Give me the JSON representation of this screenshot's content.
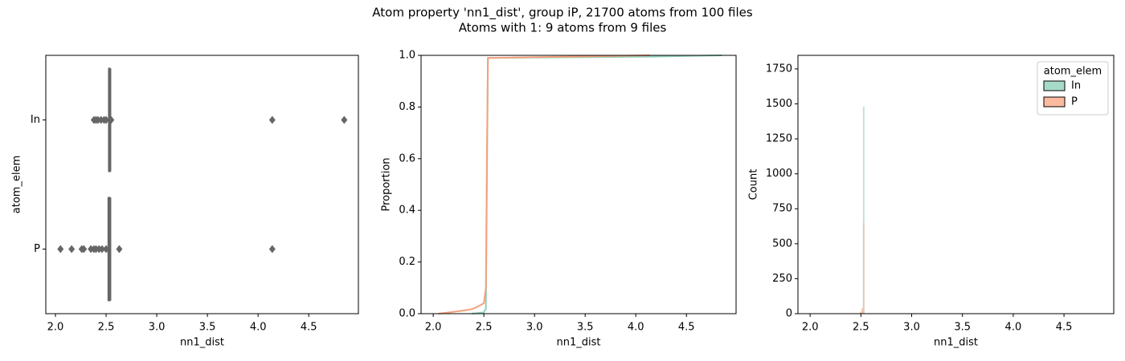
{
  "title": "Atom property 'nn1_dist', group iP, 21700 atoms from 100 files",
  "subtitle": "Atoms with 1: 9 atoms from 9 files",
  "chart_data": [
    {
      "type": "box",
      "x_label": "nn1_dist",
      "y_label": "atom_elem",
      "color": "#666666",
      "categories": [
        "In",
        "P"
      ],
      "boxes": [
        {
          "min": 2.525,
          "q1": 2.528,
          "median": 2.53,
          "q3": 2.535,
          "max": 2.545,
          "outliers": [
            2.38,
            2.4,
            2.42,
            2.45,
            2.48,
            2.5,
            2.55,
            4.14,
            4.85
          ]
        },
        {
          "min": 2.52,
          "q1": 2.525,
          "median": 2.53,
          "q3": 2.535,
          "max": 2.545,
          "outliers": [
            2.05,
            2.16,
            2.26,
            2.28,
            2.35,
            2.38,
            2.4,
            2.43,
            2.46,
            2.5,
            2.63,
            4.14
          ]
        }
      ],
      "xlim": [
        1.905,
        4.99
      ],
      "xticks": [
        {
          "value": 2,
          "label": "2.0"
        },
        {
          "value": 2.5,
          "label": "2.5"
        },
        {
          "value": 3,
          "label": "3.0"
        },
        {
          "value": 3.5,
          "label": "3.5"
        },
        {
          "value": 4,
          "label": "4.0"
        },
        {
          "value": 4.5,
          "label": "4.5"
        }
      ]
    },
    {
      "type": "line",
      "x_label": "nn1_dist",
      "y_label": "Proportion",
      "series": [
        {
          "name": "In",
          "color": "#8fd1bb",
          "x": [
            2.38,
            2.5,
            2.52,
            2.53,
            2.54,
            4.14,
            4.85
          ],
          "values": [
            0,
            0.005,
            0.02,
            0.5,
            0.99,
            0.995,
            1.0
          ]
        },
        {
          "name": "P",
          "color": "#f7a07c",
          "x": [
            2.05,
            2.16,
            2.26,
            2.35,
            2.4,
            2.45,
            2.5,
            2.52,
            2.53,
            2.54,
            4.14
          ],
          "values": [
            0,
            0.005,
            0.01,
            0.015,
            0.02,
            0.03,
            0.04,
            0.1,
            0.6,
            0.99,
            1.0
          ]
        }
      ],
      "xlim": [
        1.88,
        4.99
      ],
      "ylim": [
        0,
        1
      ],
      "xticks": [
        {
          "value": 2,
          "label": "2.0"
        },
        {
          "value": 2.5,
          "label": "2.5"
        },
        {
          "value": 3,
          "label": "3.0"
        },
        {
          "value": 3.5,
          "label": "3.5"
        },
        {
          "value": 4,
          "label": "4.0"
        },
        {
          "value": 4.5,
          "label": "4.5"
        }
      ],
      "yticks": [
        {
          "value": 0,
          "label": "0.0"
        },
        {
          "value": 0.2,
          "label": "0.2"
        },
        {
          "value": 0.4,
          "label": "0.4"
        },
        {
          "value": 0.6,
          "label": "0.6"
        },
        {
          "value": 0.8,
          "label": "0.8"
        },
        {
          "value": 1,
          "label": "1.0"
        }
      ]
    },
    {
      "type": "histogram",
      "x_label": "nn1_dist",
      "y_label": "Count",
      "legend_title": "atom_elem",
      "legend": "upper right",
      "bins": [
        2.49,
        2.505,
        2.52,
        2.535,
        2.55
      ],
      "series": [
        {
          "name": "In",
          "color": "#a6dbc9",
          "values": [
            5,
            20,
            1480,
            3
          ]
        },
        {
          "name": "P",
          "color": "#fbbaa0",
          "values": [
            15,
            40,
            650,
            2
          ]
        }
      ],
      "xlim": [
        1.88,
        4.99
      ],
      "ylim": [
        0,
        1847
      ],
      "xticks": [
        {
          "value": 2,
          "label": "2.0"
        },
        {
          "value": 2.5,
          "label": "2.5"
        },
        {
          "value": 3,
          "label": "3.0"
        },
        {
          "value": 3.5,
          "label": "3.5"
        },
        {
          "value": 4,
          "label": "4.0"
        },
        {
          "value": 4.5,
          "label": "4.5"
        }
      ],
      "yticks": [
        0,
        250,
        500,
        750,
        1000,
        1250,
        1500,
        1750
      ]
    }
  ]
}
